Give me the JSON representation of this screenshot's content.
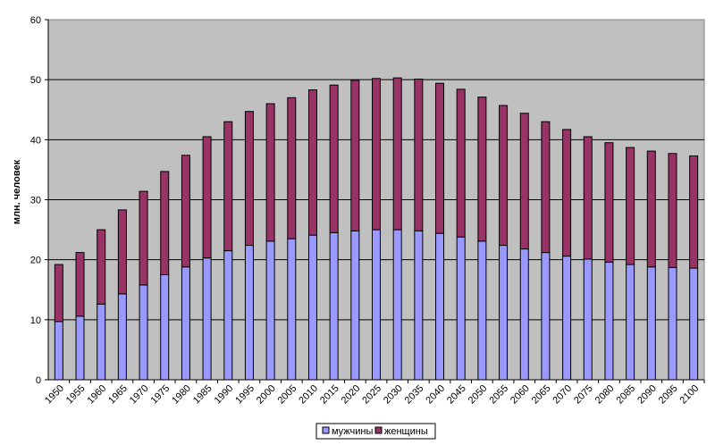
{
  "chart_data": {
    "type": "bar",
    "stacked": true,
    "ylabel": "млн. человек",
    "ylim": [
      0,
      60
    ],
    "yticks": [
      0,
      10,
      20,
      30,
      40,
      50,
      60
    ],
    "grid": true,
    "legend_position": "bottom",
    "categories": [
      "1950",
      "1955",
      "1960",
      "1965",
      "1970",
      "1975",
      "1980",
      "1985",
      "1990",
      "1995",
      "2000",
      "2005",
      "2010",
      "2015",
      "2020",
      "2025",
      "2030",
      "2035",
      "2040",
      "2045",
      "2050",
      "2055",
      "2060",
      "2065",
      "2070",
      "2075",
      "2080",
      "2085",
      "2090",
      "2095",
      "2100"
    ],
    "series": [
      {
        "name": "мужчины",
        "color": "#9999ff",
        "values": [
          9.7,
          10.6,
          12.6,
          14.3,
          15.8,
          17.5,
          18.8,
          20.3,
          21.5,
          22.4,
          23.1,
          23.5,
          24.1,
          24.5,
          24.8,
          25.0,
          25.0,
          24.8,
          24.4,
          23.8,
          23.1,
          22.4,
          21.8,
          21.2,
          20.6,
          20.1,
          19.6,
          19.2,
          18.8,
          18.7,
          18.6
        ]
      },
      {
        "name": "женщины",
        "color": "#993366",
        "values": [
          9.5,
          10.6,
          12.4,
          14.0,
          15.6,
          17.2,
          18.6,
          20.2,
          21.5,
          22.3,
          22.9,
          23.5,
          24.2,
          24.6,
          25.1,
          25.2,
          25.3,
          25.3,
          25.0,
          24.6,
          24.0,
          23.3,
          22.6,
          21.8,
          21.1,
          20.4,
          19.9,
          19.5,
          19.3,
          19.0,
          18.7
        ]
      }
    ]
  }
}
